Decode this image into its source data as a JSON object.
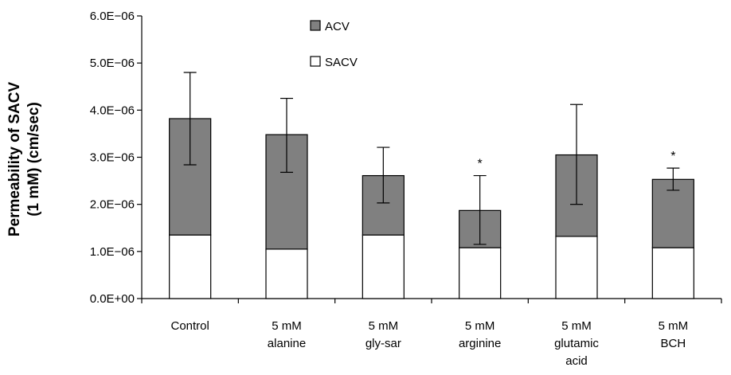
{
  "chart_data": {
    "type": "bar",
    "stacked": true,
    "ylabel_lines": [
      "Permeability of SACV",
      "(1 mM) (cm/sec)"
    ],
    "xlabel": "",
    "ylim": [
      0,
      6e-06
    ],
    "yticks": [
      0,
      1e-06,
      2e-06,
      3e-06,
      4e-06,
      5e-06,
      6e-06
    ],
    "ytick_labels": [
      "0.0E+00",
      "1.0E−06",
      "2.0E−06",
      "3.0E−06",
      "4.0E−06",
      "5.0E−06",
      "6.0E−06"
    ],
    "categories": [
      [
        "Control"
      ],
      [
        "5 mM",
        "alanine"
      ],
      [
        "5 mM",
        "gly-sar"
      ],
      [
        "5 mM",
        "arginine"
      ],
      [
        "5 mM",
        "glutamic",
        "acid"
      ],
      [
        "5 mM",
        "BCH"
      ]
    ],
    "series": [
      {
        "name": "SACV",
        "color": "#ffffff",
        "values": [
          1.35e-06,
          1.05e-06,
          1.35e-06,
          1.08e-06,
          1.32e-06,
          1.08e-06
        ]
      },
      {
        "name": "ACV",
        "color": "#808080",
        "values": [
          2.47e-06,
          2.43e-06,
          1.26e-06,
          7.9e-07,
          1.73e-06,
          1.45e-06
        ]
      }
    ],
    "totals": [
      3.82e-06,
      3.48e-06,
      2.61e-06,
      1.87e-06,
      3.05e-06,
      2.53e-06
    ],
    "error_bars": [
      {
        "low": 2.84e-06,
        "high": 4.8e-06
      },
      {
        "low": 2.68e-06,
        "high": 4.25e-06
      },
      {
        "low": 2.03e-06,
        "high": 3.21e-06
      },
      {
        "low": 1.15e-06,
        "high": 2.61e-06
      },
      {
        "low": 2e-06,
        "high": 4.12e-06
      },
      {
        "low": 2.3e-06,
        "high": 2.77e-06
      }
    ],
    "significance": [
      "",
      "",
      "",
      "*",
      "",
      "*"
    ],
    "legend": {
      "position": "top-center",
      "entries": [
        "ACV",
        "SACV"
      ]
    },
    "grid": false
  }
}
